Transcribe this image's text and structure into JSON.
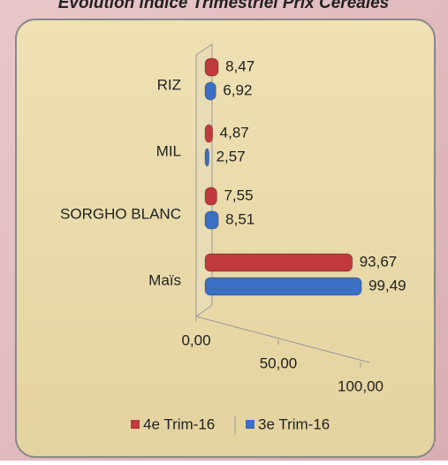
{
  "chart_data": {
    "type": "bar",
    "orientation": "horizontal",
    "title": "Evolution indice Trimestriel Prix Céréales",
    "categories": [
      "RIZ",
      "MIL",
      "SORGHO BLANC",
      "Maïs"
    ],
    "series": [
      {
        "name": "4e Trim-16",
        "color": "#c0393b",
        "values": [
          8.47,
          4.87,
          7.55,
          93.67
        ],
        "value_labels": [
          "8,47",
          "4,87",
          "7,55",
          "93,67"
        ]
      },
      {
        "name": "3e Trim-16",
        "color": "#3a6fc4",
        "values": [
          6.92,
          2.57,
          8.51,
          99.49
        ],
        "value_labels": [
          "6,92",
          "2,57",
          "8,51",
          "99,49"
        ]
      }
    ],
    "xlim": [
      0,
      100
    ],
    "xticks": [
      {
        "value": 0,
        "label": "0,00"
      },
      {
        "value": 50,
        "label": "50,00"
      },
      {
        "value": 100,
        "label": "100,00"
      }
    ],
    "legend": "bottom"
  }
}
